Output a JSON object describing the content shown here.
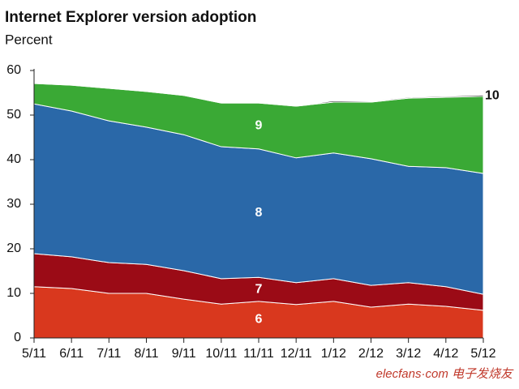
{
  "chart_data": {
    "type": "stacked-area",
    "title": "Internet Explorer version adoption",
    "subtitle": "Percent",
    "categories": [
      "5/11",
      "6/11",
      "7/11",
      "8/11",
      "9/11",
      "10/11",
      "11/11",
      "12/11",
      "1/12",
      "2/12",
      "3/12",
      "4/12",
      "5/12"
    ],
    "series": [
      {
        "name": "6",
        "color": "#d9381e",
        "values": [
          11.5,
          11.1,
          10.0,
          10.0,
          8.7,
          7.6,
          8.2,
          7.5,
          8.2,
          6.9,
          7.6,
          7.1,
          6.2
        ]
      },
      {
        "name": "7",
        "color": "#9b0b16",
        "values": [
          7.4,
          7.1,
          6.9,
          6.5,
          6.4,
          5.7,
          5.4,
          4.9,
          5.1,
          4.9,
          4.8,
          4.4,
          3.6
        ]
      },
      {
        "name": "8",
        "color": "#2a68a8",
        "values": [
          33.6,
          32.7,
          31.8,
          30.8,
          30.5,
          29.6,
          28.8,
          28.0,
          28.2,
          28.4,
          26.1,
          26.7,
          27.1
        ]
      },
      {
        "name": "9",
        "color": "#3aa935",
        "values": [
          4.6,
          5.8,
          7.3,
          8.0,
          8.8,
          9.8,
          10.3,
          11.6,
          11.4,
          12.7,
          15.3,
          15.8,
          17.3
        ]
      },
      {
        "name": "10",
        "color": "#1a1a1a",
        "values": [
          0,
          0,
          0,
          0,
          0,
          0,
          0,
          0,
          0.3,
          0.2,
          0.2,
          0.2,
          0.3
        ]
      }
    ],
    "ylim": [
      0,
      60
    ],
    "yticks": [
      0,
      10,
      20,
      30,
      40,
      50,
      60
    ],
    "watermark": "elecfans·com 电子发烧友"
  }
}
